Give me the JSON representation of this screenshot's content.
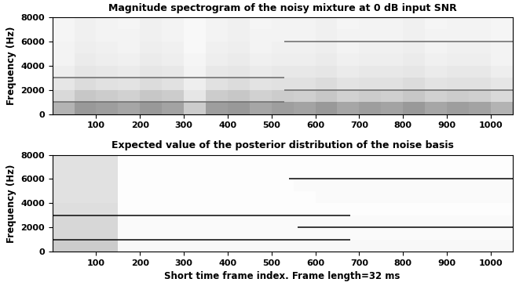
{
  "chart_data": [
    {
      "type": "heatmap",
      "title": "Magnitude spectrogram of the noisy mixture at 0 dB input SNR",
      "y_label": "Frequency (Hz)",
      "xlim": [
        0,
        1050
      ],
      "xticks": [
        100,
        200,
        300,
        400,
        500,
        600,
        700,
        800,
        900,
        1000
      ],
      "ylim": [
        0,
        8000
      ],
      "yticks": [
        0,
        2000,
        4000,
        6000,
        8000
      ],
      "x_edges": [
        0,
        50,
        100,
        150,
        200,
        250,
        300,
        350,
        400,
        450,
        500,
        550,
        600,
        650,
        700,
        750,
        800,
        850,
        900,
        950,
        1000,
        1050
      ],
      "y_edges": [
        0,
        1000,
        2000,
        3000,
        4000,
        5000,
        6000,
        7000,
        8000
      ],
      "color_range": [
        0,
        1
      ],
      "cells": [
        [
          0.3,
          0.4,
          0.38,
          0.35,
          0.4,
          0.36,
          0.2,
          0.38,
          0.4,
          0.35,
          0.38,
          0.36,
          0.4,
          0.35,
          0.38,
          0.36,
          0.4,
          0.35,
          0.38,
          0.36,
          0.3
        ],
        [
          0.15,
          0.22,
          0.2,
          0.18,
          0.22,
          0.2,
          0.1,
          0.2,
          0.22,
          0.18,
          0.2,
          0.19,
          0.22,
          0.18,
          0.2,
          0.19,
          0.22,
          0.18,
          0.2,
          0.19,
          0.15
        ],
        [
          0.1,
          0.14,
          0.12,
          0.11,
          0.14,
          0.12,
          0.07,
          0.12,
          0.14,
          0.11,
          0.12,
          0.12,
          0.14,
          0.11,
          0.12,
          0.12,
          0.14,
          0.11,
          0.12,
          0.12,
          0.1
        ],
        [
          0.07,
          0.1,
          0.09,
          0.08,
          0.1,
          0.09,
          0.05,
          0.09,
          0.1,
          0.08,
          0.09,
          0.09,
          0.1,
          0.08,
          0.09,
          0.09,
          0.1,
          0.08,
          0.09,
          0.09,
          0.07
        ],
        [
          0.05,
          0.08,
          0.07,
          0.06,
          0.08,
          0.07,
          0.04,
          0.07,
          0.08,
          0.06,
          0.07,
          0.07,
          0.08,
          0.06,
          0.07,
          0.07,
          0.08,
          0.06,
          0.07,
          0.07,
          0.05
        ],
        [
          0.05,
          0.07,
          0.06,
          0.05,
          0.07,
          0.06,
          0.03,
          0.06,
          0.07,
          0.05,
          0.06,
          0.06,
          0.07,
          0.05,
          0.06,
          0.06,
          0.07,
          0.05,
          0.06,
          0.06,
          0.05
        ],
        [
          0.04,
          0.06,
          0.05,
          0.05,
          0.06,
          0.05,
          0.03,
          0.05,
          0.06,
          0.05,
          0.05,
          0.05,
          0.06,
          0.05,
          0.05,
          0.05,
          0.06,
          0.05,
          0.05,
          0.05,
          0.04
        ],
        [
          0.04,
          0.06,
          0.05,
          0.04,
          0.06,
          0.05,
          0.03,
          0.05,
          0.06,
          0.04,
          0.05,
          0.05,
          0.06,
          0.04,
          0.05,
          0.05,
          0.06,
          0.04,
          0.05,
          0.05,
          0.04
        ]
      ],
      "tones": [
        {
          "frequency": 1000,
          "start": 0,
          "end": 530,
          "level": 0.55
        },
        {
          "frequency": 3000,
          "start": 0,
          "end": 530,
          "level": 0.55
        },
        {
          "frequency": 2000,
          "start": 530,
          "end": 1050,
          "level": 0.55
        },
        {
          "frequency": 6000,
          "start": 530,
          "end": 1050,
          "level": 0.55
        }
      ]
    },
    {
      "type": "heatmap",
      "title": "Expected value of the posterior distribution of the noise basis",
      "x_label": "Short time frame index. Frame length=32 ms",
      "y_label": "Frequency (Hz)",
      "xlim": [
        0,
        1050
      ],
      "xticks": [
        100,
        200,
        300,
        400,
        500,
        600,
        700,
        800,
        900,
        1000
      ],
      "ylim": [
        0,
        8000
      ],
      "yticks": [
        0,
        2000,
        4000,
        6000,
        8000
      ],
      "x_edges": [
        0,
        50,
        100,
        150,
        200,
        250,
        300,
        350,
        400,
        450,
        500,
        550,
        600,
        650,
        700,
        750,
        800,
        850,
        900,
        950,
        1000,
        1050
      ],
      "y_edges": [
        0,
        1000,
        2000,
        3000,
        4000,
        5000,
        6000,
        7000,
        8000
      ],
      "color_range": [
        0,
        1
      ],
      "cells": [
        [
          0.2,
          0.2,
          0.2,
          0.03,
          0.03,
          0.03,
          0.03,
          0.03,
          0.03,
          0.03,
          0.03,
          0.03,
          0.03,
          0.03,
          0.03,
          0.03,
          0.03,
          0.03,
          0.03,
          0.03,
          0.03
        ],
        [
          0.16,
          0.16,
          0.16,
          0.02,
          0.02,
          0.02,
          0.02,
          0.02,
          0.02,
          0.02,
          0.02,
          0.02,
          0.02,
          0.02,
          0.02,
          0.02,
          0.02,
          0.02,
          0.02,
          0.02,
          0.02
        ],
        [
          0.16,
          0.16,
          0.16,
          0.02,
          0.02,
          0.02,
          0.02,
          0.02,
          0.02,
          0.02,
          0.02,
          0.02,
          0.02,
          0.02,
          0.02,
          0.02,
          0.02,
          0.02,
          0.02,
          0.02,
          0.02
        ],
        [
          0.13,
          0.13,
          0.13,
          0.01,
          0.01,
          0.01,
          0.01,
          0.01,
          0.01,
          0.01,
          0.01,
          0.01,
          0.01,
          0.01,
          0.01,
          0.01,
          0.01,
          0.01,
          0.01,
          0.01,
          0.01
        ],
        [
          0.12,
          0.12,
          0.12,
          0.01,
          0.01,
          0.01,
          0.01,
          0.01,
          0.01,
          0.01,
          0.01,
          0.01,
          0.02,
          0.02,
          0.02,
          0.02,
          0.02,
          0.02,
          0.02,
          0.02,
          0.02
        ],
        [
          0.12,
          0.12,
          0.12,
          0.01,
          0.01,
          0.01,
          0.01,
          0.01,
          0.01,
          0.01,
          0.01,
          0.02,
          0.02,
          0.02,
          0.02,
          0.02,
          0.02,
          0.02,
          0.02,
          0.02,
          0.02
        ],
        [
          0.12,
          0.12,
          0.12,
          0.01,
          0.01,
          0.01,
          0.01,
          0.01,
          0.01,
          0.01,
          0.01,
          0.01,
          0.01,
          0.01,
          0.01,
          0.01,
          0.01,
          0.01,
          0.01,
          0.01,
          0.01
        ],
        [
          0.12,
          0.12,
          0.12,
          0.01,
          0.01,
          0.01,
          0.01,
          0.01,
          0.01,
          0.01,
          0.01,
          0.01,
          0.01,
          0.01,
          0.01,
          0.01,
          0.01,
          0.01,
          0.01,
          0.01,
          0.01
        ]
      ],
      "tones": [
        {
          "frequency": 1000,
          "start": 0,
          "end": 680,
          "level": 0.9
        },
        {
          "frequency": 3000,
          "start": 0,
          "end": 680,
          "level": 0.9
        },
        {
          "frequency": 2000,
          "start": 560,
          "end": 1050,
          "level": 0.9
        },
        {
          "frequency": 6000,
          "start": 540,
          "end": 1050,
          "level": 0.9
        }
      ]
    }
  ]
}
